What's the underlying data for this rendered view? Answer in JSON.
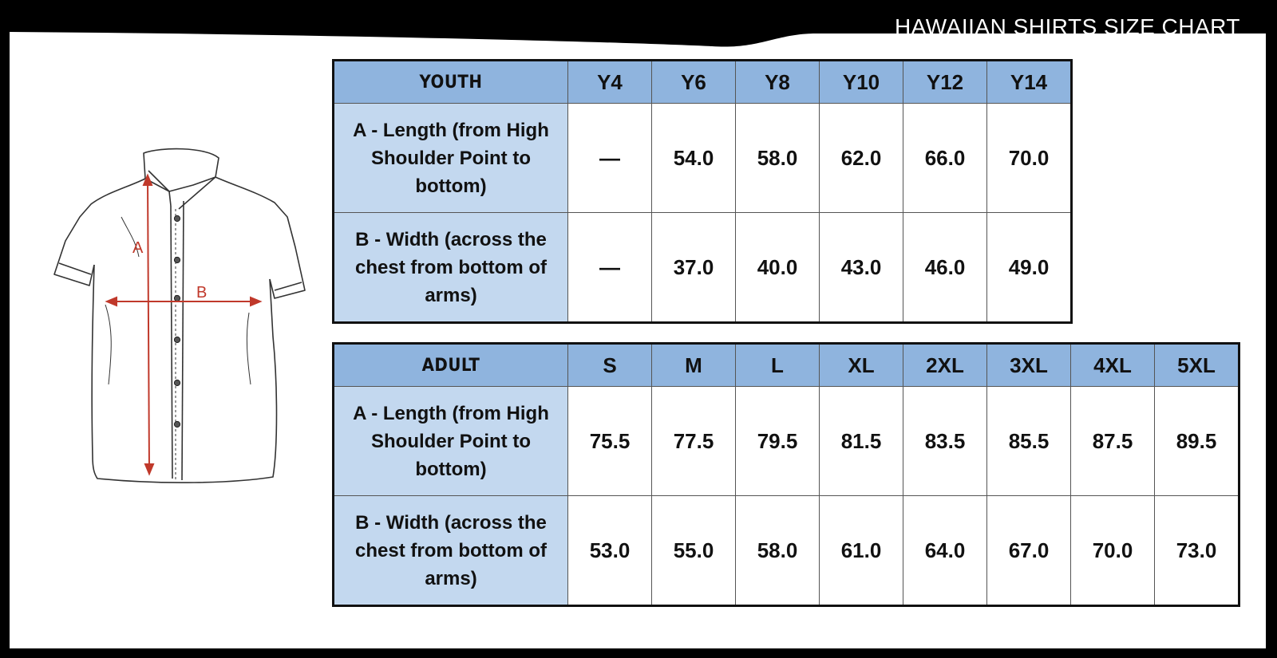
{
  "title": "HAWAIIAN SHIRTS SIZE CHART",
  "diagram": {
    "label_a": "A",
    "label_b": "B"
  },
  "youth": {
    "header": "YOUTH",
    "sizes": [
      "Y4",
      "Y6",
      "Y8",
      "Y10",
      "Y12",
      "Y14"
    ],
    "rows": [
      {
        "label": "A - Length (from High Shoulder Point to bottom)",
        "values": [
          "—",
          "54.0",
          "58.0",
          "62.0",
          "66.0",
          "70.0"
        ]
      },
      {
        "label": "B - Width (across the chest from bottom of arms)",
        "values": [
          "—",
          "37.0",
          "40.0",
          "43.0",
          "46.0",
          "49.0"
        ]
      }
    ]
  },
  "adult": {
    "header": "ADULT",
    "sizes": [
      "S",
      "M",
      "L",
      "XL",
      "2XL",
      "3XL",
      "4XL",
      "5XL"
    ],
    "rows": [
      {
        "label": "A - Length (from High Shoulder Point to bottom)",
        "values": [
          "75.5",
          "77.5",
          "79.5",
          "81.5",
          "83.5",
          "85.5",
          "87.5",
          "89.5"
        ]
      },
      {
        "label": "B - Width (across the chest from bottom of arms)",
        "values": [
          "53.0",
          "55.0",
          "58.0",
          "61.0",
          "64.0",
          "67.0",
          "70.0",
          "73.0"
        ]
      }
    ]
  },
  "colors": {
    "header_blue": "#8fb4de",
    "rowhead_blue": "#c3d8ef",
    "measure_red": "#c0392b"
  }
}
